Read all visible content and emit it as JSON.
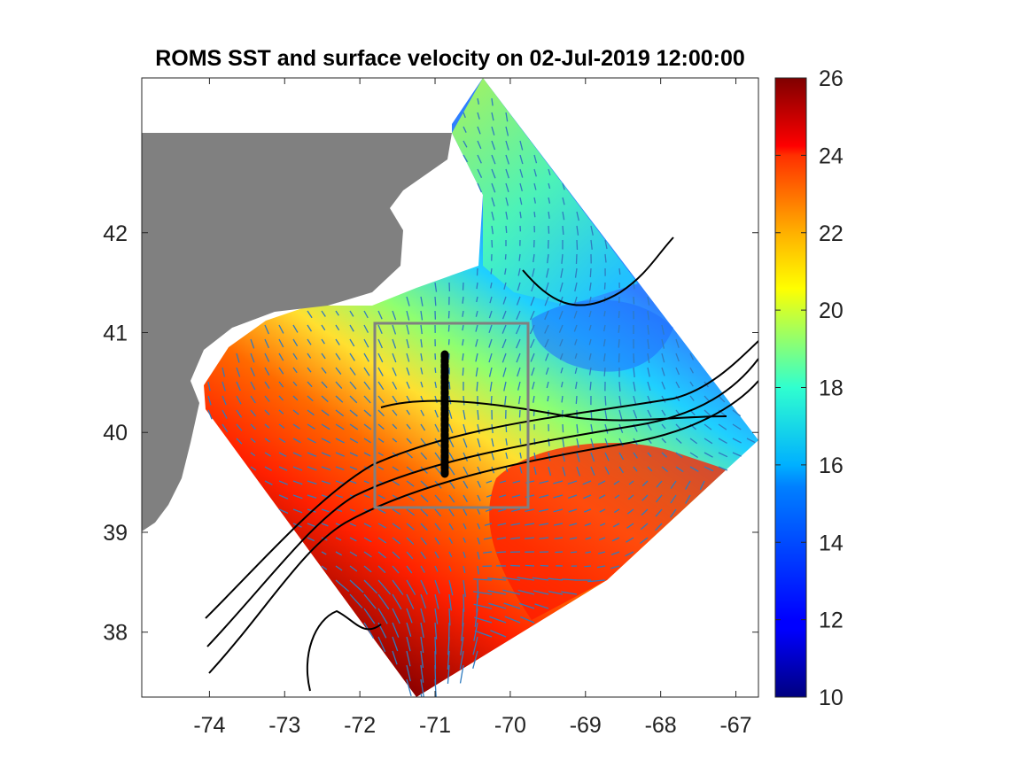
{
  "title": "ROMS SST and surface velocity on 02-Jul-2019 12:00:00",
  "map": {
    "lon_range": [
      -74.9,
      -66.7
    ],
    "lat_range": [
      37.35,
      43.55
    ],
    "x_ticks": [
      "-74",
      "-73",
      "-72",
      "-71",
      "-70",
      "-69",
      "-68",
      "-67"
    ],
    "x_tick_values": [
      -74,
      -73,
      -72,
      -71,
      -70,
      -69,
      -68,
      -67
    ],
    "y_ticks": [
      "38",
      "39",
      "40",
      "41",
      "42"
    ],
    "y_tick_values": [
      38,
      39,
      40,
      41,
      42
    ],
    "land_color": "#808080",
    "contour_color": "#000000",
    "vector_color": "#2f7bbf",
    "transect_box": {
      "lon": [
        -71.77,
        -69.77
      ],
      "lat": [
        39.27,
        41.1
      ],
      "color": "#808080"
    },
    "transect_line": {
      "lon": -70.9,
      "lat": [
        39.65,
        40.75
      ],
      "color": "#000000"
    }
  },
  "colorbar": {
    "label_values": [
      10,
      12,
      14,
      16,
      18,
      20,
      22,
      24,
      26
    ],
    "labels": [
      "10",
      "12",
      "14",
      "16",
      "18",
      "20",
      "22",
      "24",
      "26"
    ],
    "range": [
      10,
      26
    ],
    "colormap": "jet"
  }
}
